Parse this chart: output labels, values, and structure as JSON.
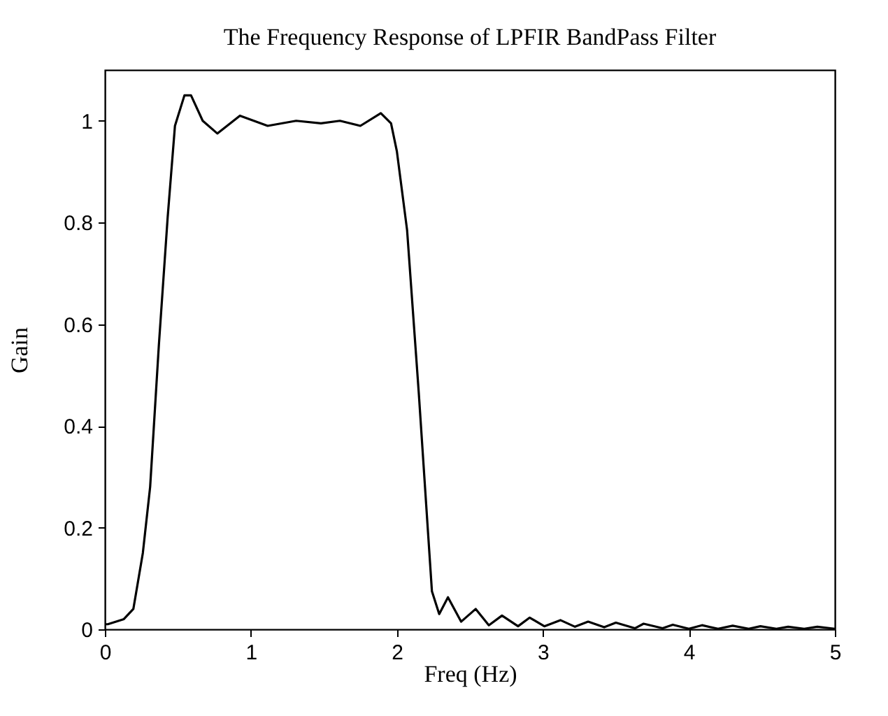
{
  "chart_data": {
    "type": "line",
    "title": "The Frequency Response of LPFIR BandPass Filter",
    "xlabel": "Freq (Hz)",
    "ylabel": "Gain",
    "xlim": [
      0,
      5
    ],
    "ylim": [
      0,
      1.1
    ],
    "xticks": [
      0,
      1,
      2,
      3,
      4,
      5
    ],
    "yticks": [
      0,
      0.2,
      0.4,
      0.6,
      0.8,
      1
    ],
    "grid": false,
    "marker": "none",
    "line_style": "solid",
    "series": [
      {
        "color": "#000000",
        "x": [
          0,
          0.02,
          0.13,
          0.195,
          0.26,
          0.31,
          0.37,
          0.43,
          0.48,
          0.545,
          0.59,
          0.67,
          0.77,
          0.925,
          1.115,
          1.31,
          1.48,
          1.61,
          1.75,
          1.89,
          1.96,
          2.0,
          2.07,
          2.15,
          2.24,
          2.29,
          2.35,
          2.44,
          2.54,
          2.63,
          2.72,
          2.83,
          2.91,
          3.01,
          3.12,
          3.22,
          3.31,
          3.42,
          3.5,
          3.63,
          3.69,
          3.82,
          3.89,
          4.0,
          4.09,
          4.2,
          4.3,
          4.41,
          4.49,
          4.6,
          4.68,
          4.79,
          4.88,
          5.0
        ],
        "values": [
          0.01,
          0.01,
          0.02,
          0.04,
          0.15,
          0.28,
          0.56,
          0.81,
          0.99,
          1.05,
          1.05,
          1.0,
          0.975,
          1.01,
          0.99,
          1.0,
          0.995,
          1.0,
          0.99,
          1.015,
          0.995,
          0.94,
          0.785,
          0.465,
          0.075,
          0.03,
          0.063,
          0.015,
          0.04,
          0.008,
          0.027,
          0.006,
          0.023,
          0.006,
          0.018,
          0.005,
          0.015,
          0.004,
          0.013,
          0.002,
          0.011,
          0.002,
          0.009,
          0.001,
          0.008,
          0.001,
          0.007,
          0.001,
          0.006,
          0.001,
          0.005,
          0.001,
          0.005,
          0.001
        ]
      }
    ]
  }
}
